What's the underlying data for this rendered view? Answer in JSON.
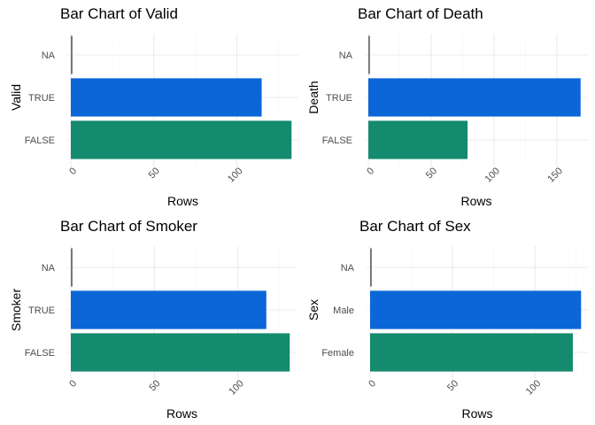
{
  "palette": {
    "FALSE": "#148a6e",
    "TRUE": "#0b66d8",
    "NA": "#707070"
  },
  "chart_data": [
    {
      "type": "bar",
      "orientation": "horizontal",
      "title": "Bar Chart of Valid",
      "xlabel": "Rows",
      "ylabel": "Valid",
      "categories": [
        "FALSE",
        "TRUE",
        "NA"
      ],
      "values": [
        133,
        115,
        1
      ],
      "xlim": [
        0,
        135
      ],
      "xticks": [
        0,
        50,
        100
      ],
      "grid": true
    },
    {
      "type": "bar",
      "orientation": "horizontal",
      "title": "Bar Chart of Death",
      "xlabel": "Rows",
      "ylabel": "Death",
      "categories": [
        "FALSE",
        "TRUE",
        "NA"
      ],
      "values": [
        79,
        169,
        1
      ],
      "xlim": [
        0,
        172
      ],
      "xticks": [
        0,
        50,
        100,
        150
      ],
      "grid": true
    },
    {
      "type": "bar",
      "orientation": "horizontal",
      "title": "Bar Chart of Smoker",
      "xlabel": "Rows",
      "ylabel": "Smoker",
      "categories": [
        "FALSE",
        "TRUE",
        "NA"
      ],
      "values": [
        131,
        117,
        1
      ],
      "xlim": [
        0,
        133
      ],
      "xticks": [
        0,
        50,
        100
      ],
      "grid": true
    },
    {
      "type": "bar",
      "orientation": "horizontal",
      "title": "Bar Chart of Sex",
      "xlabel": "Rows",
      "ylabel": "Sex",
      "categories": [
        "Female",
        "Male",
        "NA"
      ],
      "values": [
        123,
        128,
        1
      ],
      "xlim": [
        0,
        130
      ],
      "xticks": [
        0,
        50,
        100
      ],
      "grid": true
    }
  ]
}
